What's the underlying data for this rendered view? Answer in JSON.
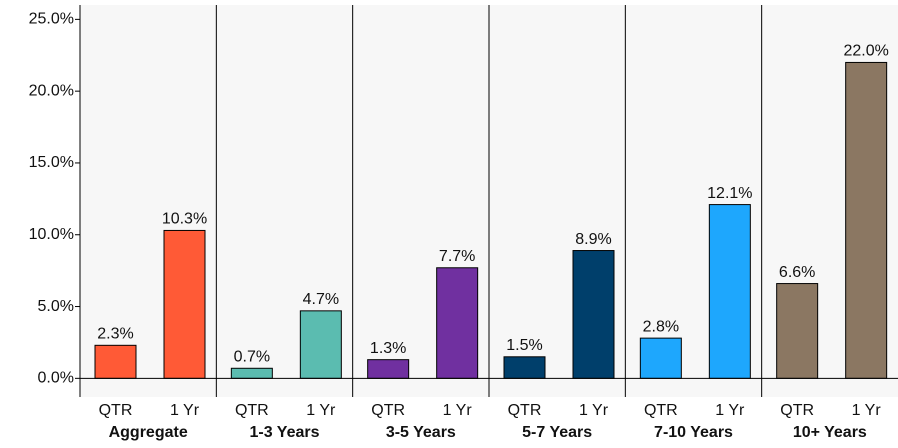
{
  "chart_data": {
    "type": "grouped-bar",
    "ylim": [
      -1.3,
      26
    ],
    "yticks": [
      {
        "value": 0,
        "label": "0.0%"
      },
      {
        "value": 5,
        "label": "5.0%"
      },
      {
        "value": 10,
        "label": "10.0%"
      },
      {
        "value": 15,
        "label": "15.0%"
      },
      {
        "value": 20,
        "label": "20.0%"
      },
      {
        "value": 25,
        "label": "25.0%"
      }
    ],
    "groups": [
      {
        "name": "Aggregate",
        "color": "#ff5a36",
        "labels": [
          "QTR",
          "1 Yr"
        ],
        "values": [
          2.3,
          10.3
        ],
        "value_labels": [
          "2.3%",
          "10.3%"
        ]
      },
      {
        "name": "1-3 Years",
        "color": "#5bbcb0",
        "labels": [
          "QTR",
          "1 Yr"
        ],
        "values": [
          0.7,
          4.7
        ],
        "value_labels": [
          "0.7%",
          "4.7%"
        ]
      },
      {
        "name": "3-5 Years",
        "color": "#7030a0",
        "labels": [
          "QTR",
          "1 Yr"
        ],
        "values": [
          1.3,
          7.7
        ],
        "value_labels": [
          "1.3%",
          "7.7%"
        ]
      },
      {
        "name": "5-7 Years",
        "color": "#003f6b",
        "labels": [
          "QTR",
          "1 Yr"
        ],
        "values": [
          1.5,
          8.9
        ],
        "value_labels": [
          "1.5%",
          "8.9%"
        ]
      },
      {
        "name": "7-10 Years",
        "color": "#1ea7fd",
        "labels": [
          "QTR",
          "1 Yr"
        ],
        "values": [
          2.8,
          12.1
        ],
        "value_labels": [
          "2.8%",
          "12.1%"
        ]
      },
      {
        "name": "10+ Years",
        "color": "#8b7762",
        "labels": [
          "QTR",
          "1 Yr"
        ],
        "values": [
          6.6,
          22.0
        ],
        "value_labels": [
          "6.6%",
          "22.0%"
        ]
      }
    ]
  }
}
